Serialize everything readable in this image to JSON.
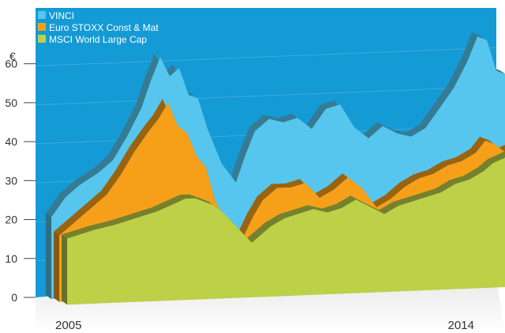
{
  "chart_data": {
    "type": "area",
    "unit_label": "€",
    "y_ticks": [
      "0",
      "10",
      "20",
      "30",
      "40",
      "50",
      "60"
    ],
    "ylim": [
      0,
      65
    ],
    "x_tick_labels": [
      "2005",
      "2014"
    ],
    "x_range": [
      2005.0,
      2014.6
    ],
    "legend_position": "top-left",
    "series": [
      {
        "name": "VINCI",
        "color": "#56c6ee",
        "x": [
          2005.0,
          2005.3,
          2005.6,
          2006.0,
          2006.3,
          2006.6,
          2006.9,
          2007.1,
          2007.3,
          2007.5,
          2007.7,
          2007.9,
          2008.1,
          2008.3,
          2008.6,
          2008.9,
          2009.1,
          2009.3,
          2009.6,
          2009.9,
          2010.2,
          2010.5,
          2010.8,
          2011.1,
          2011.4,
          2011.7,
          2012.0,
          2012.3,
          2012.6,
          2012.9,
          2013.2,
          2013.5,
          2013.8,
          2014.0,
          2014.2,
          2014.4,
          2014.6
        ],
        "values": [
          21,
          26,
          29,
          32,
          35,
          41,
          48,
          55,
          61,
          56,
          58,
          51,
          50,
          42,
          33,
          28,
          35,
          41,
          44,
          43,
          44,
          41,
          46,
          47,
          41,
          38,
          41,
          39,
          38,
          40,
          45,
          50,
          57,
          63,
          62,
          54,
          53
        ]
      },
      {
        "name": "Euro STOXX Const & Mat",
        "color": "#f6a01a",
        "x": [
          2005.0,
          2005.3,
          2005.6,
          2006.0,
          2006.3,
          2006.6,
          2006.9,
          2007.1,
          2007.3,
          2007.5,
          2007.7,
          2007.9,
          2008.1,
          2008.3,
          2008.6,
          2008.9,
          2009.1,
          2009.3,
          2009.6,
          2009.9,
          2010.2,
          2010.5,
          2010.8,
          2011.1,
          2011.4,
          2011.7,
          2012.0,
          2012.3,
          2012.6,
          2012.9,
          2013.2,
          2013.5,
          2013.8,
          2014.0,
          2014.2,
          2014.4,
          2014.6
        ],
        "values": [
          17,
          20,
          23,
          27,
          32,
          38,
          43,
          46,
          50,
          44,
          42,
          36,
          33,
          24,
          18,
          15,
          20,
          24,
          27,
          27,
          28,
          24,
          26,
          29,
          26,
          21,
          23,
          26,
          28,
          29,
          31,
          32,
          34,
          37,
          36,
          34,
          35
        ]
      },
      {
        "name": "MSCI World Large Cap",
        "color": "#bcd048",
        "x": [
          2005.0,
          2005.3,
          2005.6,
          2006.0,
          2006.3,
          2006.6,
          2006.9,
          2007.1,
          2007.3,
          2007.5,
          2007.7,
          2007.9,
          2008.1,
          2008.3,
          2008.6,
          2008.9,
          2009.1,
          2009.3,
          2009.6,
          2009.9,
          2010.2,
          2010.5,
          2010.8,
          2011.1,
          2011.4,
          2011.7,
          2012.0,
          2012.3,
          2012.6,
          2012.9,
          2013.2,
          2013.5,
          2013.8,
          2014.0,
          2014.2,
          2014.4,
          2014.6
        ],
        "values": [
          17,
          18,
          19,
          20,
          21,
          22,
          23,
          24,
          25,
          26,
          26,
          25,
          24,
          22,
          18,
          14,
          16,
          18,
          20,
          21,
          22,
          21,
          22,
          24,
          22,
          20,
          22,
          23,
          24,
          25,
          27,
          28,
          30,
          32,
          33,
          34,
          35
        ]
      }
    ],
    "background_color": "#149ad5"
  }
}
